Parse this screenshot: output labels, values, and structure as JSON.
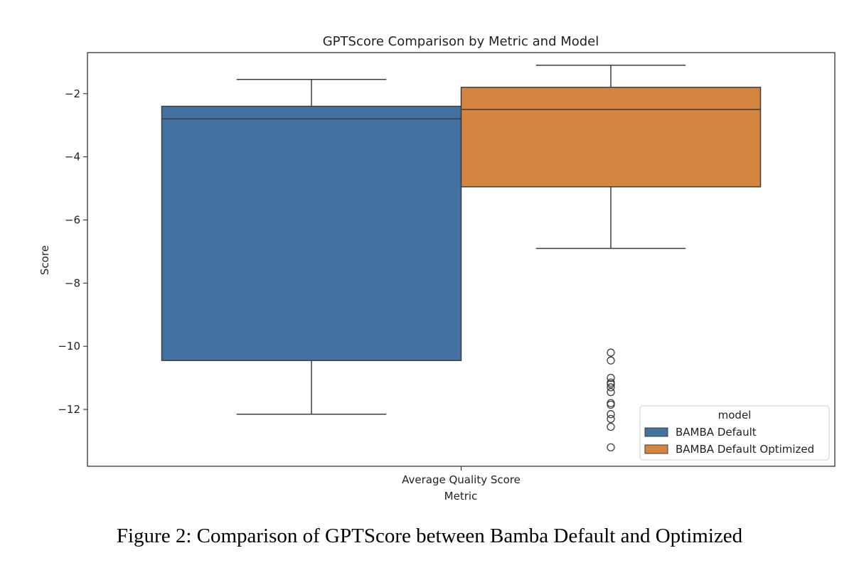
{
  "chart_data": {
    "type": "box",
    "title": "GPTScore Comparison by Metric and Model",
    "xlabel": "Metric",
    "ylabel": "Score",
    "categories": [
      "Average Quality Score"
    ],
    "ylim": [
      -13.8,
      -0.7
    ],
    "yticks": [
      -2,
      -4,
      -6,
      -8,
      -10,
      -12
    ],
    "ytick_labels": [
      "−2",
      "−4",
      "−6",
      "−8",
      "−10",
      "−12"
    ],
    "grid": false,
    "legend": {
      "title": "model",
      "position": "lower-right"
    },
    "series": [
      {
        "name": "BAMBA Default",
        "color": "#4472a0",
        "box": {
          "whisker_low": -12.15,
          "q1": -10.45,
          "median": -2.8,
          "q3": -2.4,
          "whisker_high": -1.55
        },
        "outliers": []
      },
      {
        "name": "BAMBA Default Optimized",
        "color": "#d68540",
        "box": {
          "whisker_low": -6.9,
          "q1": -4.95,
          "median": -2.5,
          "q3": -1.8,
          "whisker_high": -1.1
        },
        "outliers": [
          -10.2,
          -10.45,
          -11.0,
          -11.15,
          -11.2,
          -11.3,
          -11.45,
          -11.8,
          -11.85,
          -12.15,
          -12.3,
          -12.55,
          -13.2
        ]
      }
    ]
  },
  "caption": "Figure 2: Comparison of GPTScore between Bamba Default and Optimized"
}
